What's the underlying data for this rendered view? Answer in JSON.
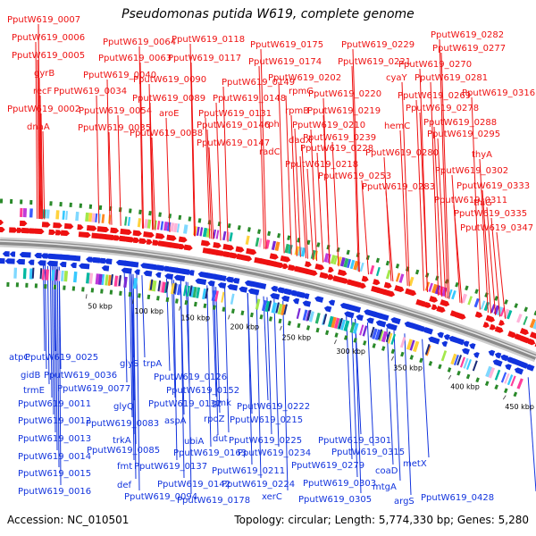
{
  "title": "Pseudomonas putida W619, complete genome",
  "footer": {
    "accession": "Accession: NC_010501",
    "stats": "Topology: circular; Length: 5,774,330 bp; Genes: 5,280"
  },
  "colors": {
    "forward": "#ee1111",
    "reverse": "#1133dd",
    "tick": "#2a8a2a",
    "backbone": "#8a8a8a"
  },
  "scale_labels": [
    "50 kbp",
    "100 kbp",
    "150 kbp",
    "200 kbp",
    "250 kbp",
    "300 kbp",
    "350 kbp",
    "400 kbp",
    "450 kbp"
  ],
  "top_labels": [
    "PputW619_0007",
    "PputW619_0006",
    "PputW619_0005",
    "gyrB",
    "recF",
    "PputW619_0002",
    "dnaA",
    "PputW619_0040",
    "PputW619_0034",
    "PputW619_0054",
    "PputW619_0035",
    "PputW619_0064",
    "PputW619_0063",
    "PputW619_0118",
    "PputW619_0117",
    "PputW619_0090",
    "PputW619_0089",
    "PputW619_0088",
    "aroE",
    "PputW619_0131",
    "PputW619_0146",
    "PputW619_0147",
    "PputW619_0148",
    "PputW619_0149",
    "PputW619_0175",
    "PputW619_0174",
    "PputW619_0202",
    "rpmG",
    "rpmB",
    "rph",
    "radC",
    "dadX",
    "PputW619_0229",
    "PputW619_0221",
    "PputW619_0220",
    "PputW619_0219",
    "PputW619_0210",
    "PputW619_0228",
    "PputW619_0218",
    "PputW619_0239",
    "cyaY",
    "hemC",
    "PputW619_0253",
    "PputW619_0280",
    "PputW619_0283",
    "PputW619_0282",
    "PputW619_0277",
    "PputW619_0270",
    "PputW619_0281",
    "PputW619_0269",
    "PputW619_0278",
    "PputW619_0288",
    "PputW619_0295",
    "PputW619_0302",
    "PputW619_0311",
    "PputW619_0316",
    "thyA",
    "PputW619_0333",
    "thiG",
    "PputW619_0335",
    "PputW619_0347"
  ],
  "bottom_labels": [
    "atpC",
    "PputW619_0025",
    "gidB",
    "PputW619_0036",
    "trmE",
    "PputW619_0011",
    "PputW619_0012",
    "PputW619_0013",
    "PputW619_0014",
    "PputW619_0015",
    "PputW619_0016",
    "glyS",
    "trpA",
    "PputW619_0077",
    "glyQ",
    "PputW619_0083",
    "trkA",
    "PputW619_0085",
    "fmt",
    "def",
    "PputW619_0094",
    "PputW619_0126",
    "PputW619_0152",
    "PputW619_0132",
    "aspA",
    "gmk",
    "rpoZ",
    "PputW619_0163",
    "ubiA",
    "dut",
    "PputW619_0137",
    "PputW619_0142",
    "PputW619_0178",
    "PputW619_0222",
    "PputW619_0215",
    "PputW619_0225",
    "PputW619_0234",
    "PputW619_0211",
    "PputW619_0224",
    "xerC",
    "PputW619_0301",
    "PputW619_0315",
    "PputW619_0279",
    "PputW619_0303",
    "PputW619_0305",
    "coaD",
    "metX",
    "mtgA",
    "argS",
    "PputW619_0428"
  ]
}
